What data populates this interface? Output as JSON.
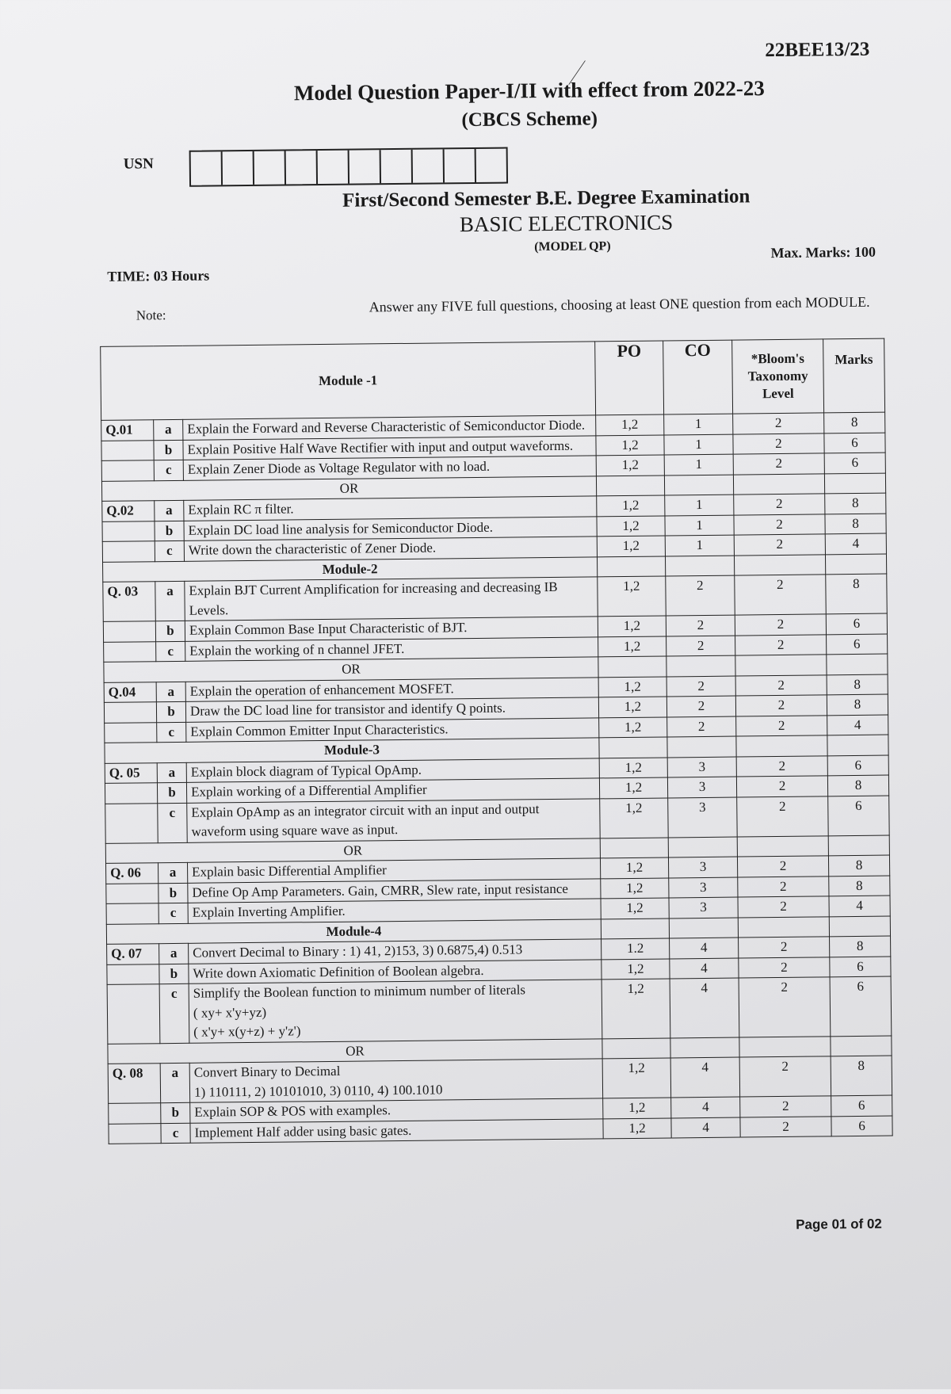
{
  "header": {
    "code": "22BEE13/23",
    "title": "Model Question Paper-I/II with effect from 2022-23",
    "scheme": "(CBCS Scheme)",
    "usn_label": "USN",
    "exam": "First/Second Semester B.E. Degree Examination",
    "subject": "BASIC ELECTRONICS",
    "model_qp": "(MODEL QP)",
    "time": "TIME: 03 Hours",
    "max_marks": "Max. Marks: 100",
    "note_label": "Note:",
    "instruction": "Answer any FIVE full questions, choosing at least ONE question from each MODULE."
  },
  "table": {
    "headers": {
      "module": "Module -1",
      "po": "PO",
      "co": "CO",
      "bloom": "*Bloom's Taxonomy Level",
      "marks": "Marks"
    },
    "rows": [
      {
        "q": "Q.01",
        "s": "a",
        "text": "Explain the Forward and Reverse Characteristic of Semiconductor Diode.",
        "po": "1,2",
        "co": "1",
        "bl": "2",
        "m": "8"
      },
      {
        "q": "",
        "s": "b",
        "text": "Explain Positive Half Wave Rectifier with input and output waveforms.",
        "po": "1,2",
        "co": "1",
        "bl": "2",
        "m": "6"
      },
      {
        "q": "",
        "s": "c",
        "text": "Explain Zener Diode as Voltage Regulator with no load.",
        "po": "1,2",
        "co": "1",
        "bl": "2",
        "m": "6"
      },
      {
        "sep": "OR"
      },
      {
        "q": "Q.02",
        "s": "a",
        "text": "Explain RC π filter.",
        "po": "1,2",
        "co": "1",
        "bl": "2",
        "m": "8"
      },
      {
        "q": "",
        "s": "b",
        "text": "Explain DC load line analysis for Semiconductor Diode.",
        "po": "1,2",
        "co": "1",
        "bl": "2",
        "m": "8"
      },
      {
        "q": "",
        "s": "c",
        "text": "Write down the characteristic of Zener Diode.",
        "po": "1,2",
        "co": "1",
        "bl": "2",
        "m": "4"
      },
      {
        "module": "Module-2"
      },
      {
        "q": "Q. 03",
        "s": "a",
        "text": "Explain BJT Current Amplification for increasing and decreasing IB Levels.",
        "po": "1,2",
        "co": "2",
        "bl": "2",
        "m": "8"
      },
      {
        "q": "",
        "s": "b",
        "text": "Explain Common Base Input Characteristic of BJT.",
        "po": "1,2",
        "co": "2",
        "bl": "2",
        "m": "6"
      },
      {
        "q": "",
        "s": "c",
        "text": "Explain the working of n channel JFET.",
        "po": "1,2",
        "co": "2",
        "bl": "2",
        "m": "6"
      },
      {
        "sep": "OR"
      },
      {
        "q": "Q.04",
        "s": "a",
        "text": "Explain the operation of enhancement MOSFET.",
        "po": "1,2",
        "co": "2",
        "bl": "2",
        "m": "8"
      },
      {
        "q": "",
        "s": "b",
        "text": "Draw the DC load line for transistor and identify Q points.",
        "po": "1,2",
        "co": "2",
        "bl": "2",
        "m": "8"
      },
      {
        "q": "",
        "s": "c",
        "text": "Explain Common Emitter Input Characteristics.",
        "po": "1,2",
        "co": "2",
        "bl": "2",
        "m": "4"
      },
      {
        "module": "Module-3"
      },
      {
        "q": "Q. 05",
        "s": "a",
        "text": "Explain block diagram of Typical OpAmp.",
        "po": "1,2",
        "co": "3",
        "bl": "2",
        "m": "6"
      },
      {
        "q": "",
        "s": "b",
        "text": "Explain working of a Differential Amplifier",
        "po": "1,2",
        "co": "3",
        "bl": "2",
        "m": "8"
      },
      {
        "q": "",
        "s": "c",
        "text": "Explain OpAmp as an integrator circuit with an input and output waveform using square wave as input.",
        "po": "1,2",
        "co": "3",
        "bl": "2",
        "m": "6"
      },
      {
        "sep": "OR"
      },
      {
        "q": "Q. 06",
        "s": "a",
        "text": "Explain basic Differential Amplifier",
        "po": "1,2",
        "co": "3",
        "bl": "2",
        "m": "8"
      },
      {
        "q": "",
        "s": "b",
        "text": "Define Op Amp Parameters. Gain, CMRR, Slew rate, input resistance",
        "po": "1,2",
        "co": "3",
        "bl": "2",
        "m": "8"
      },
      {
        "q": "",
        "s": "c",
        "text": "Explain Inverting Amplifier.",
        "po": "1,2",
        "co": "3",
        "bl": "2",
        "m": "4"
      },
      {
        "module": "Module-4"
      },
      {
        "q": "Q. 07",
        "s": "a",
        "text": "Convert Decimal to Binary : 1) 41, 2)153, 3) 0.6875,4) 0.513",
        "po": "1.2",
        "co": "4",
        "bl": "2",
        "m": "8"
      },
      {
        "q": "",
        "s": "b",
        "text": "Write down Axiomatic Definition of Boolean algebra.",
        "po": "1,2",
        "co": "4",
        "bl": "2",
        "m": "6"
      },
      {
        "q": "",
        "s": "c",
        "text": "Simplify the Boolean function to minimum number of literals\n( xy+ x'y+yz)\n( x'y+ x(y+z) + y'z')",
        "po": "1,2",
        "co": "4",
        "bl": "2",
        "m": "6"
      },
      {
        "sep": "OR"
      },
      {
        "q": "Q. 08",
        "s": "a",
        "text": "Convert Binary to Decimal\n1) 110111, 2) 10101010, 3) 0110, 4) 100.1010",
        "po": "1,2",
        "co": "4",
        "bl": "2",
        "m": "8"
      },
      {
        "q": "",
        "s": "b",
        "text": "Explain SOP & POS with examples.",
        "po": "1,2",
        "co": "4",
        "bl": "2",
        "m": "6"
      },
      {
        "q": "",
        "s": "c",
        "text": "Implement Half adder using basic gates.",
        "po": "1,2",
        "co": "4",
        "bl": "2",
        "m": "6"
      }
    ]
  },
  "footer": {
    "page": "Page 01 of 02"
  }
}
